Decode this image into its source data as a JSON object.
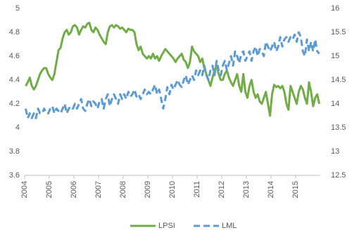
{
  "chart_data": {
    "type": "line",
    "categories": [
      "2004",
      null,
      null,
      null,
      null,
      null,
      null,
      null,
      null,
      null,
      null,
      null,
      "2005",
      null,
      null,
      null,
      null,
      null,
      null,
      null,
      null,
      null,
      null,
      null,
      "2006",
      null,
      null,
      null,
      null,
      null,
      null,
      null,
      null,
      null,
      null,
      null,
      "2007",
      null,
      null,
      null,
      null,
      null,
      null,
      null,
      null,
      null,
      null,
      null,
      "2008",
      null,
      null,
      null,
      null,
      null,
      null,
      null,
      null,
      null,
      null,
      null,
      "2009",
      null,
      null,
      null,
      null,
      null,
      null,
      null,
      null,
      null,
      null,
      null,
      "2010",
      null,
      null,
      null,
      null,
      null,
      null,
      null,
      null,
      null,
      null,
      null,
      "2011",
      null,
      null,
      null,
      null,
      null,
      null,
      null,
      null,
      null,
      null,
      null,
      "2012",
      null,
      null,
      null,
      null,
      null,
      null,
      null,
      null,
      null,
      null,
      null,
      "2013",
      null,
      null,
      null,
      null,
      null,
      null,
      null,
      null,
      null,
      null,
      null,
      "2014",
      null,
      null,
      null,
      null,
      null,
      null,
      null,
      null,
      null,
      null,
      null,
      "2015",
      null,
      null,
      null,
      null,
      null,
      null,
      null,
      null,
      null,
      null,
      null
    ],
    "series": [
      {
        "name": "LPSI",
        "color": "#70ad47",
        "dash": false,
        "values": [
          4.35,
          4.38,
          4.42,
          4.35,
          4.32,
          4.35,
          4.4,
          4.45,
          4.48,
          4.5,
          4.5,
          4.45,
          4.42,
          4.4,
          4.45,
          4.55,
          4.65,
          4.67,
          4.75,
          4.8,
          4.82,
          4.78,
          4.8,
          4.85,
          4.86,
          4.84,
          4.78,
          4.82,
          4.85,
          4.84,
          4.87,
          4.88,
          4.82,
          4.8,
          4.84,
          4.82,
          4.78,
          4.75,
          4.72,
          4.7,
          4.8,
          4.85,
          4.86,
          4.84,
          4.86,
          4.85,
          4.83,
          4.84,
          4.82,
          4.8,
          4.83,
          4.82,
          4.82,
          4.8,
          4.7,
          4.65,
          4.68,
          4.62,
          4.6,
          4.58,
          4.6,
          4.58,
          4.62,
          4.58,
          4.6,
          4.56,
          4.6,
          4.63,
          4.66,
          4.64,
          4.62,
          4.6,
          4.58,
          4.55,
          4.58,
          4.6,
          4.62,
          4.57,
          4.55,
          4.5,
          4.55,
          4.68,
          4.64,
          4.62,
          4.6,
          4.55,
          4.58,
          4.5,
          4.45,
          4.4,
          4.35,
          4.42,
          4.48,
          4.52,
          4.45,
          4.4,
          4.4,
          4.45,
          4.48,
          4.42,
          4.38,
          4.35,
          4.4,
          4.45,
          4.35,
          4.3,
          4.45,
          4.3,
          4.25,
          4.35,
          4.4,
          4.3,
          4.25,
          4.28,
          4.22,
          4.2,
          4.25,
          4.3,
          4.2,
          4.1,
          4.28,
          4.36,
          4.34,
          4.35,
          4.33,
          4.35,
          4.3,
          4.2,
          4.15,
          4.35,
          4.3,
          4.25,
          4.2,
          4.3,
          4.35,
          4.32,
          4.25,
          4.2,
          4.38,
          4.3,
          4.18,
          4.25,
          4.28,
          4.2
        ]
      },
      {
        "name": "LML",
        "color": "#5b9bd5",
        "dash": true,
        "axis": "y2",
        "values": [
          13.9,
          13.7,
          13.8,
          13.7,
          13.8,
          13.7,
          13.9,
          13.8,
          13.8,
          13.9,
          13.8,
          13.8,
          13.9,
          13.95,
          13.8,
          13.9,
          13.85,
          13.8,
          13.9,
          14.0,
          13.8,
          13.9,
          13.95,
          13.9,
          14.0,
          13.9,
          14.0,
          14.1,
          13.9,
          13.85,
          14.0,
          14.1,
          13.95,
          14.05,
          14.0,
          13.9,
          14.05,
          14.1,
          13.9,
          14.1,
          14.2,
          13.95,
          14.1,
          14.2,
          14.1,
          14.0,
          14.2,
          14.1,
          14.2,
          14.1,
          14.25,
          14.15,
          14.2,
          14.3,
          14.15,
          14.2,
          14.1,
          14.2,
          14.3,
          14.2,
          14.25,
          14.2,
          14.3,
          14.4,
          14.2,
          14.3,
          14.1,
          13.9,
          14.1,
          14.35,
          14.2,
          14.4,
          14.3,
          14.4,
          14.5,
          14.4,
          14.35,
          14.5,
          14.6,
          14.4,
          14.5,
          14.6,
          14.5,
          14.7,
          14.6,
          14.7,
          14.6,
          14.8,
          14.6,
          14.5,
          14.7,
          14.8,
          14.6,
          14.9,
          14.7,
          14.6,
          14.8,
          14.9,
          14.7,
          14.85,
          15.0,
          14.8,
          15.1,
          15.0,
          14.85,
          15.05,
          15.1,
          14.9,
          15.0,
          15.1,
          14.9,
          15.1,
          15.2,
          15.0,
          15.15,
          15.1,
          15.0,
          15.3,
          15.2,
          15.1,
          15.2,
          15.3,
          15.1,
          15.2,
          15.4,
          15.2,
          15.35,
          15.4,
          15.3,
          15.4,
          15.35,
          15.45,
          15.3,
          15.5,
          15.4,
          15.1,
          15.0,
          15.35,
          15.1,
          15.3,
          15.1,
          15.35,
          15.1,
          15.05
        ]
      }
    ],
    "ylim": [
      3.6,
      5
    ],
    "yticks": [
      3.6,
      3.8,
      4,
      4.2,
      4.4,
      4.6,
      4.8,
      5
    ],
    "y2lim": [
      12.5,
      16
    ],
    "y2ticks": [
      12.5,
      13,
      13.5,
      14,
      14.5,
      15,
      15.5,
      16
    ],
    "grid": false,
    "legend": "bottom"
  }
}
